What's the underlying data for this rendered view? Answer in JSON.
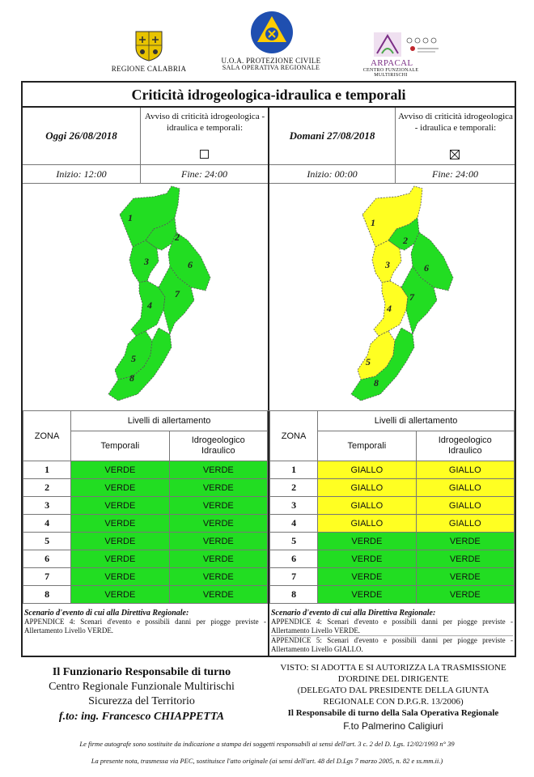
{
  "header": {
    "left_label": "REGIONE CALABRIA",
    "center_label_1": "U.O.A. PROTEZIONE CIVILE",
    "center_label_2": "SALA OPERATIVA REGIONALE",
    "right_label_1": "ARPACAL",
    "right_label_2": "CENTRO FUNZIONALE MULTIRISCHI"
  },
  "title": "Criticità idrogeologica-idraulica e temporali",
  "today": {
    "date": "Oggi 26/08/2018",
    "avviso": "Avviso di criticità idrogeologica - idraulica e temporali:",
    "avviso_checked": false,
    "inizio": "Inizio: 12:00",
    "fine": "Fine: 24:00",
    "zones_color": [
      "#22dd22",
      "#22dd22",
      "#22dd22",
      "#22dd22",
      "#22dd22",
      "#22dd22",
      "#22dd22",
      "#22dd22"
    ]
  },
  "tomorrow": {
    "date": "Domani 27/08/2018",
    "avviso": "Avviso di criticità idrogeologica - idraulica e temporali:",
    "avviso_checked": true,
    "inizio": "Inizio: 00:00",
    "fine": "Fine: 24:00",
    "zones_color": [
      "#ffff22",
      "#ffff22",
      "#ffff22",
      "#ffff22",
      "#22dd22",
      "#22dd22",
      "#22dd22",
      "#22dd22"
    ]
  },
  "table": {
    "zona": "ZONA",
    "livelli": "Livelli di allertamento",
    "col_temporali": "Temporali",
    "col_idro_1": "Idrogeologico",
    "col_idro_2": "Idraulico"
  },
  "today_rows": [
    {
      "zona": "1",
      "temporali": "VERDE",
      "idro": "VERDE"
    },
    {
      "zona": "2",
      "temporali": "VERDE",
      "idro": "VERDE"
    },
    {
      "zona": "3",
      "temporali": "VERDE",
      "idro": "VERDE"
    },
    {
      "zona": "4",
      "temporali": "VERDE",
      "idro": "VERDE"
    },
    {
      "zona": "5",
      "temporali": "VERDE",
      "idro": "VERDE"
    },
    {
      "zona": "6",
      "temporali": "VERDE",
      "idro": "VERDE"
    },
    {
      "zona": "7",
      "temporali": "VERDE",
      "idro": "VERDE"
    },
    {
      "zona": "8",
      "temporali": "VERDE",
      "idro": "VERDE"
    }
  ],
  "tomorrow_rows": [
    {
      "zona": "1",
      "temporali": "GIALLO",
      "idro": "GIALLO"
    },
    {
      "zona": "2",
      "temporali": "GIALLO",
      "idro": "GIALLO"
    },
    {
      "zona": "3",
      "temporali": "GIALLO",
      "idro": "GIALLO"
    },
    {
      "zona": "4",
      "temporali": "GIALLO",
      "idro": "GIALLO"
    },
    {
      "zona": "5",
      "temporali": "VERDE",
      "idro": "VERDE"
    },
    {
      "zona": "6",
      "temporali": "VERDE",
      "idro": "VERDE"
    },
    {
      "zona": "7",
      "temporali": "VERDE",
      "idro": "VERDE"
    },
    {
      "zona": "8",
      "temporali": "VERDE",
      "idro": "VERDE"
    }
  ],
  "scenario": {
    "title": "Scenario d'evento di cui alla Direttiva Regionale:",
    "today_text": "APPENDICE 4: Scenari d'evento e possibili danni per piogge previste - Allertamento Livello VERDE.",
    "tomorrow_text_1": "APPENDICE 4: Scenari d'evento e possibili danni per piogge previste - Allertamento Livello VERDE.",
    "tomorrow_text_2": "APPENDICE 5: Scenari d'evento e possibili danni per piogge previste - Allertamento Livello GIALLO."
  },
  "footer_left": {
    "line1": "Il Funzionario Responsabile di turno",
    "line2": "Centro Regionale Funzionale Multirischi",
    "line3": "Sicurezza del Territorio",
    "line4": "f.to: ing. Francesco CHIAPPETTA"
  },
  "footer_right": {
    "line1": "VISTO: SI ADOTTA E SI AUTORIZZA LA TRASMISSIONE",
    "line2": "D'ORDINE DEL DIRIGENTE",
    "line3": "(DELEGATO DAL PRESIDENTE DELLA GIUNTA",
    "line4": "REGIONALE CON D.P.G.R. 13/2006)",
    "line5": "Il Responsabile di turno della Sala Operativa Regionale",
    "line6": "F.to Palmerino Caligiuri"
  },
  "notes": {
    "line1": "Le firme autografe sono sostituite da indicazione a stampa dei soggetti responsabili ai sensi dell'art. 3 c. 2 del D. Lgs. 12/02/1993 n° 39",
    "line2": "La presente nota, trasmessa via PEC, sostituisce l'atto originale (ai sensi dell'art. 48 del D.Lgs 7 marzo 2005, n. 82 e ss.mm.ii.)"
  }
}
